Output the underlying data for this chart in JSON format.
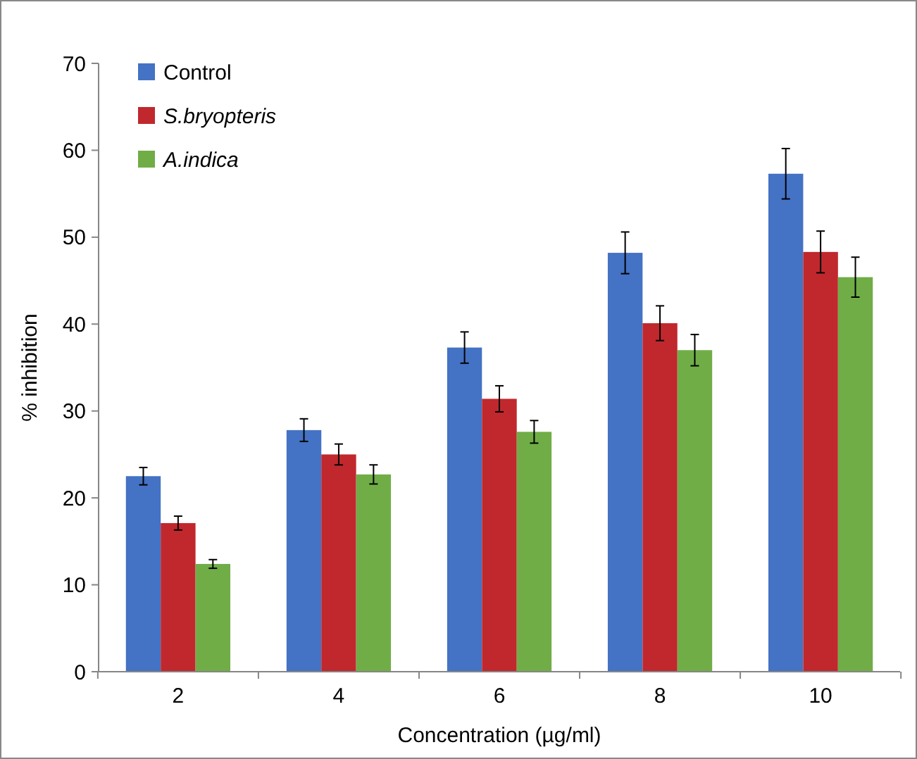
{
  "chart_data": {
    "type": "bar",
    "xlabel": "Concentration (µg/ml)",
    "ylabel": "% inhibition",
    "categories": [
      "2",
      "4",
      "6",
      "8",
      "10"
    ],
    "series": [
      {
        "name": "Control",
        "color": "#4472c4",
        "values": [
          22.5,
          27.8,
          37.3,
          48.2,
          57.3
        ],
        "errors": [
          1,
          1.3,
          1.8,
          2.4,
          2.9
        ]
      },
      {
        "name": "S.bryopteris",
        "color": "#c0282d",
        "values": [
          17.1,
          25.0,
          31.4,
          40.1,
          48.3
        ],
        "errors": [
          0.8,
          1.2,
          1.5,
          2,
          2.4
        ]
      },
      {
        "name": "A.indica",
        "color": "#70ad47",
        "values": [
          12.4,
          22.7,
          27.6,
          37.0,
          45.4
        ],
        "errors": [
          0.5,
          1.1,
          1.3,
          1.8,
          2.3
        ]
      }
    ],
    "ylim": [
      0,
      70
    ],
    "yticks": [
      0,
      10,
      20,
      30,
      40,
      50,
      60,
      70
    ],
    "grid": false,
    "legend": "top left"
  }
}
